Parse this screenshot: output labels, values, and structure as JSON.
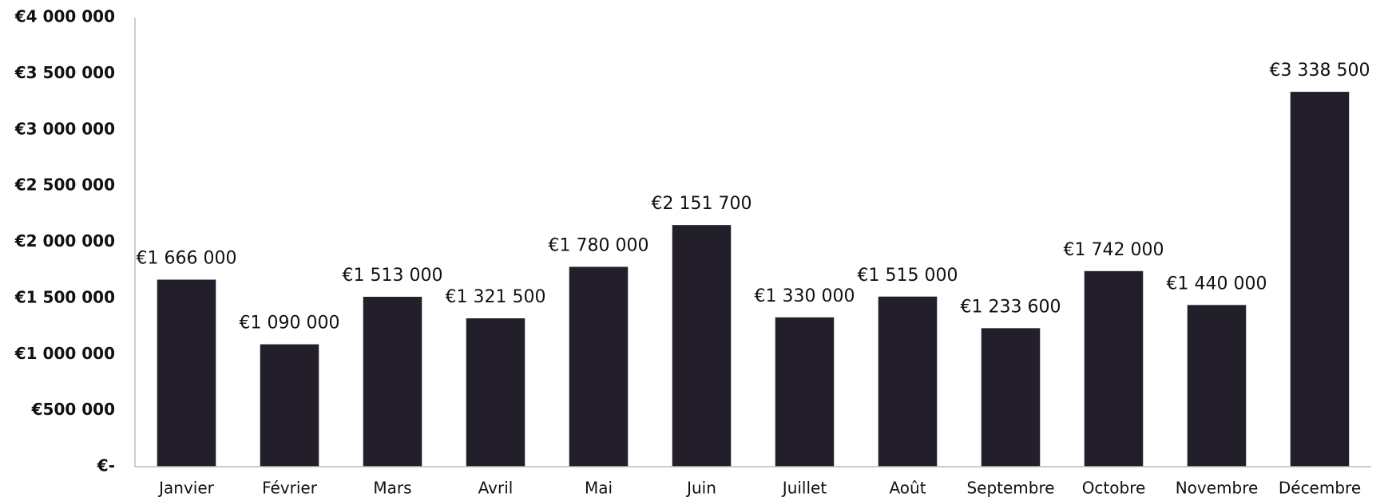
{
  "chart_data": {
    "type": "bar",
    "categories": [
      "Janvier",
      "Février",
      "Mars",
      "Avril",
      "Mai",
      "Juin",
      "Juillet",
      "Août",
      "Septembre",
      "Octobre",
      "Novembre",
      "Décembre"
    ],
    "values": [
      1666000,
      1090000,
      1513000,
      1321500,
      1780000,
      2151700,
      1330000,
      1515000,
      1233600,
      1742000,
      1440000,
      3338500
    ],
    "value_labels": [
      "€1 666 000",
      "€1 090 000",
      "€1 513 000",
      "€1 321 500",
      "€1 780 000",
      "€2 151 700",
      "€1 330 000",
      "€1 515 000",
      "€1 233 600",
      "€1 742 000",
      "€1 440 000",
      "€3 338 500"
    ],
    "color": "#231f2a",
    "ylim": [
      0,
      4000000
    ],
    "yticks": [
      {
        "value": 0,
        "label": "€-"
      },
      {
        "value": 500000,
        "label": "€500 000"
      },
      {
        "value": 1000000,
        "label": "€1 000 000"
      },
      {
        "value": 1500000,
        "label": "€1 500 000"
      },
      {
        "value": 2000000,
        "label": "€2 000 000"
      },
      {
        "value": 2500000,
        "label": "€2 500 000"
      },
      {
        "value": 3000000,
        "label": "€3 000 000"
      },
      {
        "value": 3500000,
        "label": "€3 500 000"
      },
      {
        "value": 4000000,
        "label": "€4 000 000"
      }
    ],
    "grid": false
  }
}
